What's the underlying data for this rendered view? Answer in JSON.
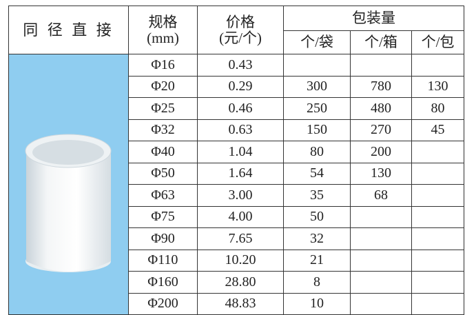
{
  "header": {
    "title": "同 径 直 接",
    "spec": "规格",
    "spec_unit": "(mm)",
    "price": "价格",
    "price_unit": "(元/个)",
    "packing": "包装量",
    "packing_units": [
      "个/袋",
      "个/箱",
      "个/包"
    ]
  },
  "table": {
    "rows": [
      [
        "Φ16",
        "0.43",
        null,
        null,
        null
      ],
      [
        "Φ20",
        "0.29",
        "300",
        "780",
        "130"
      ],
      [
        "Φ25",
        "0.46",
        "250",
        "480",
        "80"
      ],
      [
        "Φ32",
        "0.63",
        "150",
        "270",
        "45"
      ],
      [
        "Φ40",
        "1.04",
        "80",
        "200",
        null
      ],
      [
        "Φ50",
        "1.64",
        "54",
        "130",
        null
      ],
      [
        "Φ63",
        "3.00",
        "35",
        "68",
        null
      ],
      [
        "Φ75",
        "4.00",
        "50",
        null,
        null
      ],
      [
        "Φ90",
        "7.65",
        "32",
        null,
        null
      ],
      [
        "Φ110",
        "10.20",
        "21",
        null,
        null
      ],
      [
        "Φ160",
        "28.80",
        "8",
        null,
        null
      ],
      [
        "Φ200",
        "48.83",
        "10",
        null,
        null
      ]
    ]
  }
}
